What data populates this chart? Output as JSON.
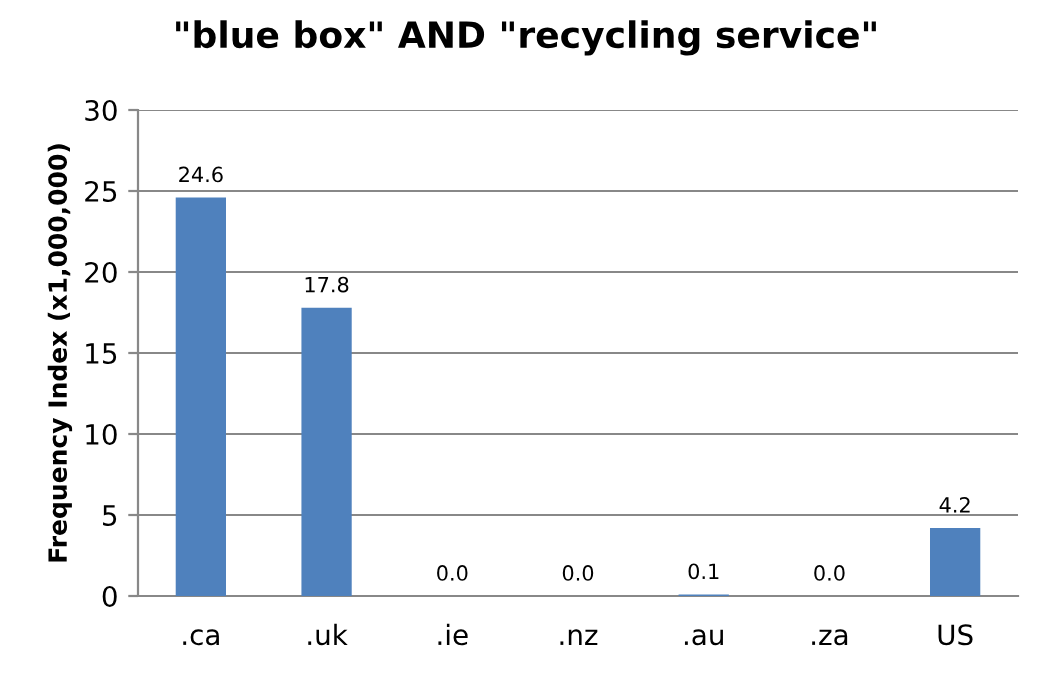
{
  "chart_data": {
    "type": "bar",
    "title": "\"blue box\" AND \"recycling service\"",
    "ylabel": "Frequency Index (x1,000,000)",
    "categories": [
      ".ca",
      ".uk",
      ".ie",
      ".nz",
      ".au",
      ".za",
      "US"
    ],
    "values": [
      24.6,
      17.8,
      0.0,
      0.0,
      0.1,
      0.0,
      4.2
    ],
    "value_labels": [
      "24.6",
      "17.8",
      "0.0",
      "0.0",
      "0.1",
      "0.0",
      "4.2"
    ],
    "color": "#4f81bd",
    "ylim": [
      0,
      30
    ],
    "yticks": [
      0,
      5,
      10,
      15,
      20,
      25,
      30
    ],
    "grid": "y",
    "legend": false
  }
}
